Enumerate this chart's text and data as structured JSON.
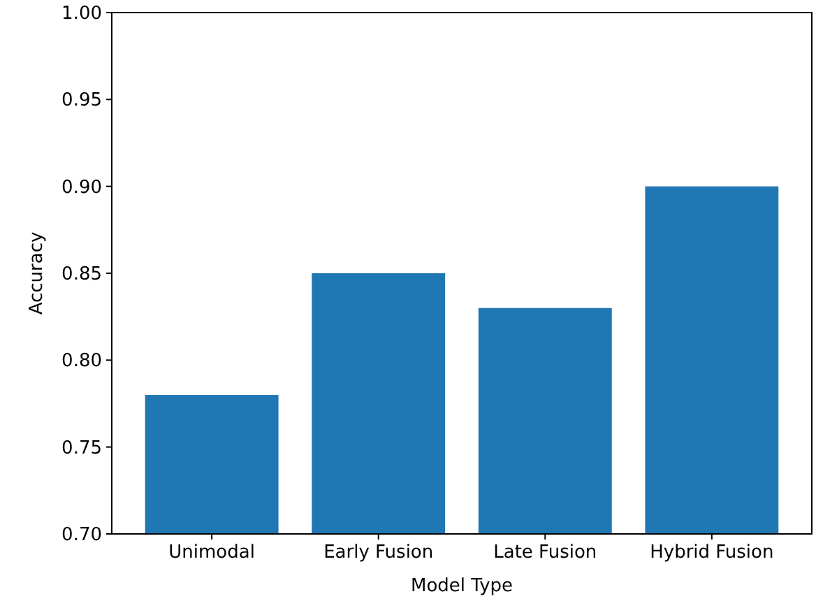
{
  "chart_data": {
    "type": "bar",
    "xlabel": "Model Type",
    "ylabel": "Accuracy",
    "categories": [
      "Unimodal",
      "Early Fusion",
      "Late Fusion",
      "Hybrid Fusion"
    ],
    "values": [
      0.78,
      0.85,
      0.83,
      0.9
    ],
    "color": "#1f77b4",
    "ylim": [
      0.7,
      1.0
    ],
    "yticks": [
      {
        "value": 0.7,
        "label": "0.70"
      },
      {
        "value": 0.75,
        "label": "0.75"
      },
      {
        "value": 0.8,
        "label": "0.80"
      },
      {
        "value": 0.85,
        "label": "0.85"
      },
      {
        "value": 0.9,
        "label": "0.90"
      },
      {
        "value": 0.95,
        "label": "0.95"
      },
      {
        "value": 1.0,
        "label": "1.00"
      }
    ],
    "grid": false
  }
}
